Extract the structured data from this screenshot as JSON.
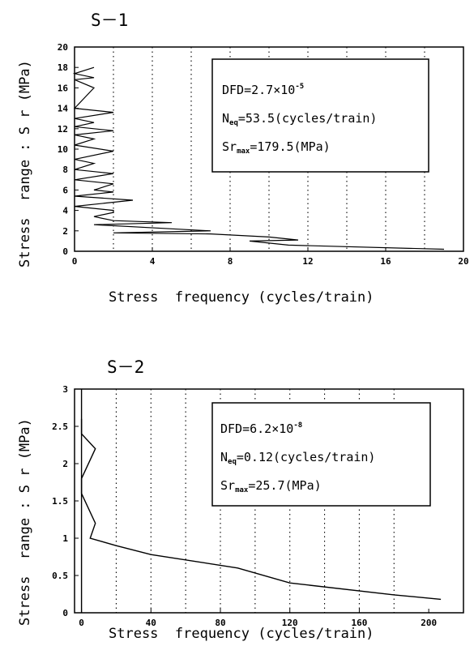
{
  "chart_data": [
    {
      "type": "line",
      "title": "S－1",
      "xlabel": "Stress  frequency (cycles/train)",
      "ylabel": "Stress  range : S r (MPa)",
      "xlim": [
        0,
        20
      ],
      "ylim": [
        0,
        20
      ],
      "xticks": [
        "0",
        "4",
        "8",
        "12",
        "16",
        "20"
      ],
      "yticks": [
        "0",
        "2",
        "4",
        "6",
        "8",
        "10",
        "12",
        "14",
        "16",
        "18",
        "20"
      ],
      "grid": "vertical dotted",
      "annotation": {
        "dfd_label": "DFD=2.7×10",
        "dfd_exp": "-5",
        "neq_main": "N",
        "neq_sub": "eq",
        "neq_value": "=53.5(cycles/train)",
        "sr_main": "Sr",
        "sr_sub": "max",
        "sr_value": "=179.5(MPa)"
      },
      "series": [
        {
          "x": [
            19.0,
            11.0,
            9.0,
            11.5,
            10.0,
            7.0,
            2.0,
            7.0,
            5.0,
            1.0,
            5.0,
            2.0,
            1.0,
            2.0,
            2.0,
            0.0,
            3.0,
            0.0,
            2.0,
            1.0,
            2.0,
            0.0,
            2.0,
            0.0,
            1.0,
            0.0,
            2.0,
            0.0,
            1.0,
            0.0,
            2.0,
            0.0,
            1.0,
            0.0,
            2.0,
            0.0,
            1.0,
            0.0,
            1.0,
            0.0,
            1.0
          ],
          "y": [
            0.2,
            0.6,
            1.0,
            1.1,
            1.4,
            1.7,
            1.8,
            2.0,
            2.2,
            2.6,
            2.8,
            3.0,
            3.4,
            3.8,
            4.0,
            4.4,
            5.0,
            5.4,
            5.8,
            6.0,
            6.6,
            7.0,
            7.6,
            8.0,
            8.6,
            9.0,
            9.8,
            10.4,
            11.0,
            11.4,
            11.8,
            12.2,
            12.6,
            13.0,
            13.6,
            14.0,
            16.0,
            16.8,
            17.0,
            17.4,
            18.0
          ]
        }
      ]
    },
    {
      "type": "line",
      "title": "S－2",
      "xlabel": "Stress  frequency (cycles/train)",
      "ylabel": "Stress  range : S r (MPa)",
      "xlim": [
        -4,
        220
      ],
      "ylim": [
        0,
        3
      ],
      "xticks": [
        "0",
        "40",
        "80",
        "120",
        "160",
        "200"
      ],
      "yticks": [
        "0",
        "0.5",
        "1",
        "1.5",
        "2",
        "2.5",
        "3"
      ],
      "grid": "vertical dotted",
      "annotation": {
        "dfd_label": "DFD=6.2×10",
        "dfd_exp": "-8",
        "neq_main": "N",
        "neq_sub": "eq",
        "neq_value": "=0.12(cycles/train)",
        "sr_main": "Sr",
        "sr_sub": "max",
        "sr_value": "=25.7(MPa)"
      },
      "series": [
        {
          "x": [
            207,
            180,
            120,
            90,
            40,
            20,
            5,
            8,
            0,
            0,
            8,
            0,
            0
          ],
          "y": [
            0.18,
            0.24,
            0.4,
            0.6,
            0.78,
            0.9,
            1.0,
            1.2,
            1.6,
            1.8,
            2.2,
            2.4,
            2.6
          ]
        },
        {
          "x": [
            0,
            0
          ],
          "y": [
            0,
            3
          ]
        }
      ]
    }
  ]
}
